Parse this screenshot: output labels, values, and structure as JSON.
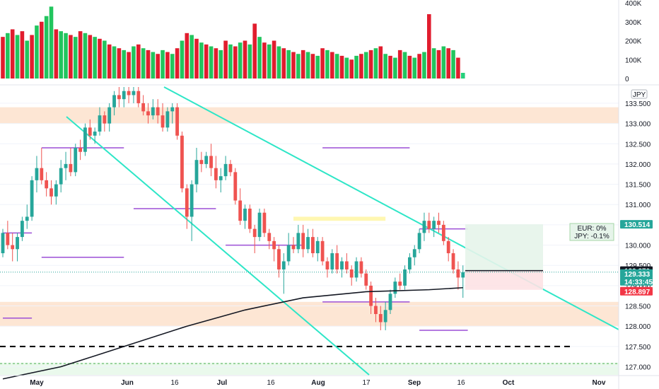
{
  "chart_data": {
    "type": "candlestick",
    "price_axis": {
      "ticks": [
        "133.500",
        "133.000",
        "132.500",
        "132.000",
        "131.500",
        "131.000",
        "130.500",
        "130.000",
        "129.500",
        "129.000",
        "128.500",
        "128.000",
        "127.500",
        "127.000"
      ],
      "currency_label": "JPY",
      "ylim": [
        126.8,
        133.9
      ]
    },
    "volume_axis": {
      "ticks": [
        "400K",
        "300K",
        "200K",
        "100K",
        "0"
      ],
      "ylim": [
        0,
        400000
      ]
    },
    "time_axis": {
      "labels": [
        {
          "text": "May",
          "kind": "month"
        },
        {
          "text": "Jun",
          "kind": "month"
        },
        {
          "text": "16",
          "kind": "day"
        },
        {
          "text": "Jul",
          "kind": "month"
        },
        {
          "text": "16",
          "kind": "day"
        },
        {
          "text": "Aug",
          "kind": "month"
        },
        {
          "text": "17",
          "kind": "day"
        },
        {
          "text": "Sep",
          "kind": "month"
        },
        {
          "text": "16",
          "kind": "day"
        },
        {
          "text": "Oct",
          "kind": "month"
        },
        {
          "text": "Nov",
          "kind": "month"
        }
      ]
    },
    "price_tags": [
      {
        "text": "130.514",
        "color": "#26a69a"
      },
      {
        "text": "129.370",
        "color": "#131722"
      },
      {
        "text": "129.333",
        "color": "#26a69a"
      },
      {
        "text": "14:33:45",
        "color": "#26a69a"
      },
      {
        "text": "128.897",
        "color": "#f23645"
      }
    ],
    "position_note": {
      "lines": [
        "EUR: 0%",
        "JPY: -0.1%"
      ]
    },
    "candles": [
      [
        129.8,
        130.4,
        129.7,
        130.3
      ],
      [
        130.3,
        130.6,
        129.9,
        130.0
      ],
      [
        130.0,
        130.3,
        129.6,
        129.9
      ],
      [
        129.9,
        130.3,
        129.6,
        130.2
      ],
      [
        130.2,
        130.7,
        130.1,
        130.6
      ],
      [
        130.6,
        131.0,
        130.4,
        130.7
      ],
      [
        130.7,
        131.7,
        130.6,
        131.6
      ],
      [
        131.6,
        132.2,
        131.3,
        131.9
      ],
      [
        131.9,
        132.4,
        131.5,
        131.6
      ],
      [
        131.6,
        131.8,
        131.2,
        131.4
      ],
      [
        131.4,
        131.6,
        131.0,
        131.2
      ],
      [
        131.2,
        131.6,
        131.0,
        131.5
      ],
      [
        131.5,
        132.1,
        131.3,
        131.9
      ],
      [
        131.9,
        132.3,
        131.6,
        132.0
      ],
      [
        132.0,
        132.4,
        131.7,
        131.8
      ],
      [
        131.8,
        132.5,
        131.7,
        132.4
      ],
      [
        132.4,
        132.6,
        132.1,
        132.3
      ],
      [
        132.3,
        133.0,
        132.2,
        132.9
      ],
      [
        132.9,
        133.1,
        132.6,
        132.7
      ],
      [
        132.7,
        132.9,
        132.5,
        132.8
      ],
      [
        132.8,
        133.4,
        132.7,
        133.2
      ],
      [
        133.2,
        133.3,
        132.8,
        133.0
      ],
      [
        133.0,
        133.5,
        132.8,
        133.4
      ],
      [
        133.4,
        133.8,
        133.2,
        133.7
      ],
      [
        133.7,
        133.9,
        133.4,
        133.6
      ],
      [
        133.6,
        133.9,
        133.4,
        133.8
      ],
      [
        133.8,
        133.9,
        133.5,
        133.7
      ],
      [
        133.7,
        133.9,
        133.5,
        133.8
      ],
      [
        133.8,
        133.9,
        133.4,
        133.5
      ],
      [
        133.5,
        133.7,
        133.2,
        133.3
      ],
      [
        133.3,
        133.5,
        133.0,
        133.2
      ],
      [
        133.2,
        133.6,
        133.1,
        133.4
      ],
      [
        133.4,
        133.6,
        133.0,
        133.2
      ],
      [
        133.2,
        133.5,
        132.8,
        132.9
      ],
      [
        132.9,
        133.4,
        132.8,
        133.3
      ],
      [
        133.3,
        133.5,
        133.0,
        133.4
      ],
      [
        133.4,
        133.5,
        132.6,
        132.7
      ],
      [
        132.7,
        132.8,
        131.3,
        131.4
      ],
      [
        131.4,
        131.5,
        130.4,
        130.7
      ],
      [
        130.7,
        131.6,
        130.1,
        131.5
      ],
      [
        131.5,
        132.4,
        131.3,
        132.1
      ],
      [
        132.1,
        132.3,
        131.8,
        132.0
      ],
      [
        132.0,
        132.3,
        131.9,
        132.2
      ],
      [
        132.2,
        132.5,
        131.7,
        131.9
      ],
      [
        131.9,
        132.2,
        131.4,
        131.6
      ],
      [
        131.6,
        131.9,
        131.3,
        131.7
      ],
      [
        131.7,
        132.2,
        131.6,
        132.0
      ],
      [
        132.0,
        132.1,
        131.7,
        131.8
      ],
      [
        131.8,
        131.9,
        131.0,
        131.1
      ],
      [
        131.1,
        131.4,
        130.5,
        130.6
      ],
      [
        130.6,
        131.0,
        130.4,
        130.9
      ],
      [
        130.9,
        131.0,
        130.3,
        130.4
      ],
      [
        130.4,
        130.5,
        129.8,
        130.2
      ],
      [
        130.2,
        130.9,
        130.1,
        130.8
      ],
      [
        130.8,
        130.9,
        130.2,
        130.3
      ],
      [
        130.3,
        130.4,
        129.9,
        130.1
      ],
      [
        130.1,
        130.2,
        129.6,
        129.9
      ],
      [
        129.9,
        130.0,
        129.2,
        129.4
      ],
      [
        129.4,
        129.8,
        128.8,
        129.6
      ],
      [
        129.6,
        130.3,
        129.5,
        130.0
      ],
      [
        130.0,
        130.2,
        129.8,
        129.9
      ],
      [
        129.9,
        130.5,
        129.8,
        130.3
      ],
      [
        130.3,
        130.5,
        129.7,
        129.9
      ],
      [
        129.9,
        130.4,
        129.8,
        130.2
      ],
      [
        130.2,
        130.4,
        129.7,
        129.8
      ],
      [
        129.8,
        130.2,
        129.6,
        130.1
      ],
      [
        130.1,
        130.2,
        129.5,
        129.6
      ],
      [
        129.6,
        129.7,
        129.2,
        129.4
      ],
      [
        129.4,
        129.9,
        129.3,
        129.8
      ],
      [
        129.8,
        130.0,
        129.3,
        129.4
      ],
      [
        129.4,
        129.7,
        129.2,
        129.6
      ],
      [
        129.6,
        129.8,
        129.3,
        129.4
      ],
      [
        129.4,
        129.5,
        129.0,
        129.2
      ],
      [
        129.2,
        129.7,
        129.1,
        129.6
      ],
      [
        129.6,
        129.7,
        129.2,
        129.3
      ],
      [
        129.3,
        129.4,
        128.9,
        129.0
      ],
      [
        129.0,
        129.1,
        128.3,
        128.5
      ],
      [
        128.5,
        128.7,
        128.1,
        128.3
      ],
      [
        128.3,
        128.5,
        127.9,
        128.1
      ],
      [
        128.1,
        128.6,
        127.9,
        128.4
      ],
      [
        128.4,
        128.9,
        128.3,
        128.8
      ],
      [
        128.8,
        129.2,
        128.7,
        129.1
      ],
      [
        129.1,
        129.3,
        128.9,
        129.0
      ],
      [
        129.0,
        129.5,
        128.9,
        129.4
      ],
      [
        129.4,
        129.8,
        129.3,
        129.7
      ],
      [
        129.7,
        130.0,
        129.5,
        129.9
      ],
      [
        129.9,
        130.4,
        129.8,
        130.3
      ],
      [
        130.3,
        130.8,
        130.1,
        130.6
      ],
      [
        130.6,
        130.8,
        130.3,
        130.4
      ],
      [
        130.4,
        130.7,
        130.2,
        130.6
      ],
      [
        130.6,
        130.8,
        130.3,
        130.5
      ],
      [
        130.5,
        130.6,
        130.0,
        130.1
      ],
      [
        130.1,
        130.2,
        129.6,
        129.8
      ],
      [
        129.8,
        129.9,
        129.3,
        129.4
      ],
      [
        129.4,
        129.6,
        128.9,
        129.2
      ],
      [
        129.2,
        129.5,
        128.7,
        129.33
      ]
    ],
    "volumes": [
      [
        220000,
        0
      ],
      [
        240000,
        1
      ],
      [
        260000,
        0
      ],
      [
        230000,
        1
      ],
      [
        250000,
        0
      ],
      [
        200000,
        1
      ],
      [
        230000,
        0
      ],
      [
        280000,
        1
      ],
      [
        300000,
        0
      ],
      [
        330000,
        1
      ],
      [
        380000,
        1
      ],
      [
        260000,
        0
      ],
      [
        250000,
        1
      ],
      [
        240000,
        1
      ],
      [
        230000,
        0
      ],
      [
        220000,
        1
      ],
      [
        250000,
        0
      ],
      [
        240000,
        1
      ],
      [
        230000,
        0
      ],
      [
        220000,
        1
      ],
      [
        210000,
        0
      ],
      [
        200000,
        1
      ],
      [
        180000,
        0
      ],
      [
        170000,
        1
      ],
      [
        160000,
        0
      ],
      [
        150000,
        1
      ],
      [
        140000,
        0
      ],
      [
        170000,
        1
      ],
      [
        180000,
        0
      ],
      [
        160000,
        1
      ],
      [
        150000,
        0
      ],
      [
        140000,
        1
      ],
      [
        130000,
        0
      ],
      [
        150000,
        1
      ],
      [
        140000,
        0
      ],
      [
        130000,
        1
      ],
      [
        160000,
        0
      ],
      [
        200000,
        1
      ],
      [
        240000,
        0
      ],
      [
        230000,
        1
      ],
      [
        210000,
        0
      ],
      [
        190000,
        1
      ],
      [
        180000,
        0
      ],
      [
        170000,
        1
      ],
      [
        160000,
        0
      ],
      [
        150000,
        1
      ],
      [
        200000,
        0
      ],
      [
        180000,
        1
      ],
      [
        170000,
        0
      ],
      [
        190000,
        1
      ],
      [
        200000,
        0
      ],
      [
        180000,
        1
      ],
      [
        290000,
        0
      ],
      [
        220000,
        1
      ],
      [
        190000,
        0
      ],
      [
        180000,
        1
      ],
      [
        200000,
        0
      ],
      [
        170000,
        1
      ],
      [
        160000,
        0
      ],
      [
        150000,
        1
      ],
      [
        140000,
        0
      ],
      [
        130000,
        1
      ],
      [
        150000,
        0
      ],
      [
        140000,
        1
      ],
      [
        130000,
        0
      ],
      [
        120000,
        1
      ],
      [
        160000,
        0
      ],
      [
        150000,
        1
      ],
      [
        140000,
        0
      ],
      [
        130000,
        1
      ],
      [
        120000,
        0
      ],
      [
        110000,
        1
      ],
      [
        100000,
        0
      ],
      [
        120000,
        1
      ],
      [
        130000,
        0
      ],
      [
        140000,
        1
      ],
      [
        150000,
        0
      ],
      [
        160000,
        1
      ],
      [
        170000,
        0
      ],
      [
        130000,
        1
      ],
      [
        120000,
        0
      ],
      [
        110000,
        1
      ],
      [
        150000,
        0
      ],
      [
        140000,
        1
      ],
      [
        120000,
        0
      ],
      [
        110000,
        1
      ],
      [
        130000,
        0
      ],
      [
        140000,
        1
      ],
      [
        340000,
        0
      ],
      [
        160000,
        1
      ],
      [
        150000,
        0
      ],
      [
        170000,
        1
      ],
      [
        160000,
        0
      ],
      [
        150000,
        1
      ],
      [
        110000,
        0
      ],
      [
        30000,
        1
      ]
    ],
    "annotations": {
      "sma": [
        [
          0,
          126.7
        ],
        [
          12,
          127.0
        ],
        [
          25,
          127.5
        ],
        [
          38,
          128.0
        ],
        [
          50,
          128.4
        ],
        [
          62,
          128.7
        ],
        [
          75,
          128.85
        ],
        [
          88,
          128.9
        ],
        [
          95,
          128.95
        ]
      ],
      "zones": [
        {
          "name": "resistance-zone",
          "ymin": 133.0,
          "ymax": 133.4
        },
        {
          "name": "support-zone",
          "ymin": 128.0,
          "ymax": 128.6
        },
        {
          "name": "bottom-green-zone",
          "ymin": 126.8,
          "ymax": 127.1
        }
      ],
      "dashed_levels": [
        127.5,
        127.08
      ],
      "purple_levels": [
        {
          "x0": 8,
          "x1": 25,
          "y": 132.4
        },
        {
          "x0": 27,
          "x1": 44,
          "y": 130.9
        },
        {
          "x0": 0,
          "x1": 6,
          "y": 130.3
        },
        {
          "x0": 8,
          "x1": 25,
          "y": 129.7
        },
        {
          "x0": 46,
          "x1": 62,
          "y": 130.0
        },
        {
          "x0": 66,
          "x1": 84,
          "y": 132.4
        },
        {
          "x0": 66,
          "x1": 84,
          "y": 128.6
        },
        {
          "x0": 86,
          "x1": 96,
          "y": 130.4
        },
        {
          "x0": 86,
          "x1": 96,
          "y": 127.9
        },
        {
          "x0": 0,
          "x1": 6,
          "y": 128.2
        }
      ],
      "yellow_box": {
        "x0": 60,
        "x1": 79,
        "y0": 130.6,
        "y1": 130.7
      }
    }
  }
}
